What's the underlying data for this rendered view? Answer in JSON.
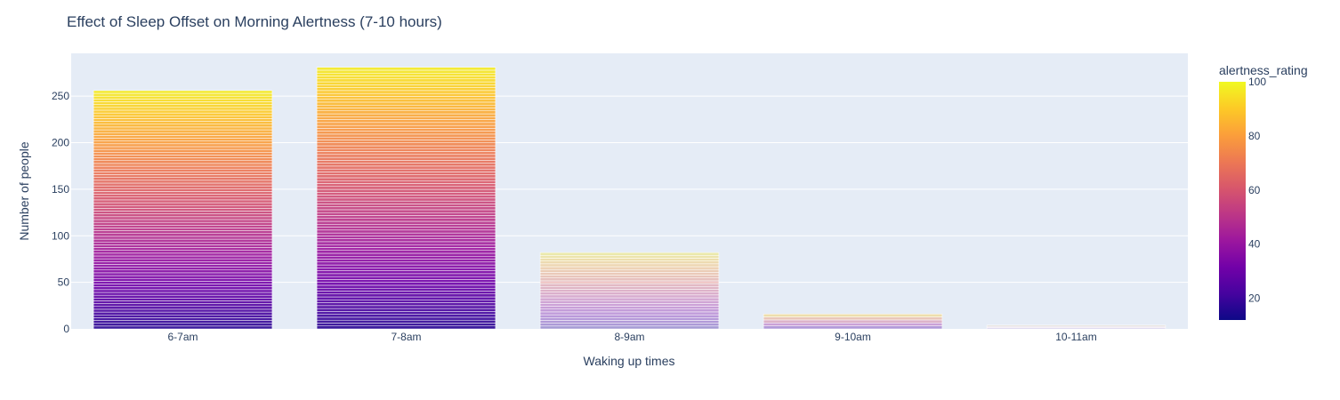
{
  "chart_data": {
    "type": "bar",
    "title": "Effect of Sleep Offset on Morning Alertness (7-10 hours)",
    "xlabel": "Waking up times",
    "ylabel": "Number of people",
    "categories": [
      "6-7am",
      "7-8am",
      "8-9am",
      "9-10am",
      "10-11am"
    ],
    "values": [
      256,
      281,
      82,
      16,
      4
    ],
    "ylim": [
      0,
      296
    ],
    "yticks": [
      0,
      50,
      100,
      150,
      200,
      250
    ],
    "grid": true,
    "stacked_by": "alertness_rating",
    "colorbar": {
      "title": "alertness_rating",
      "range": [
        12,
        100
      ],
      "ticks": [
        20,
        40,
        60,
        80,
        100
      ],
      "colorscale": [
        "#0d0887",
        "#46039f",
        "#7201a8",
        "#9c179e",
        "#bd3786",
        "#d8576b",
        "#ed7953",
        "#fb9f3a",
        "#fdca26",
        "#f0f921"
      ]
    },
    "colors": {
      "plot_background": "#e5ecf6",
      "grid": "#ffffff",
      "text": "#2a3f5f"
    }
  }
}
